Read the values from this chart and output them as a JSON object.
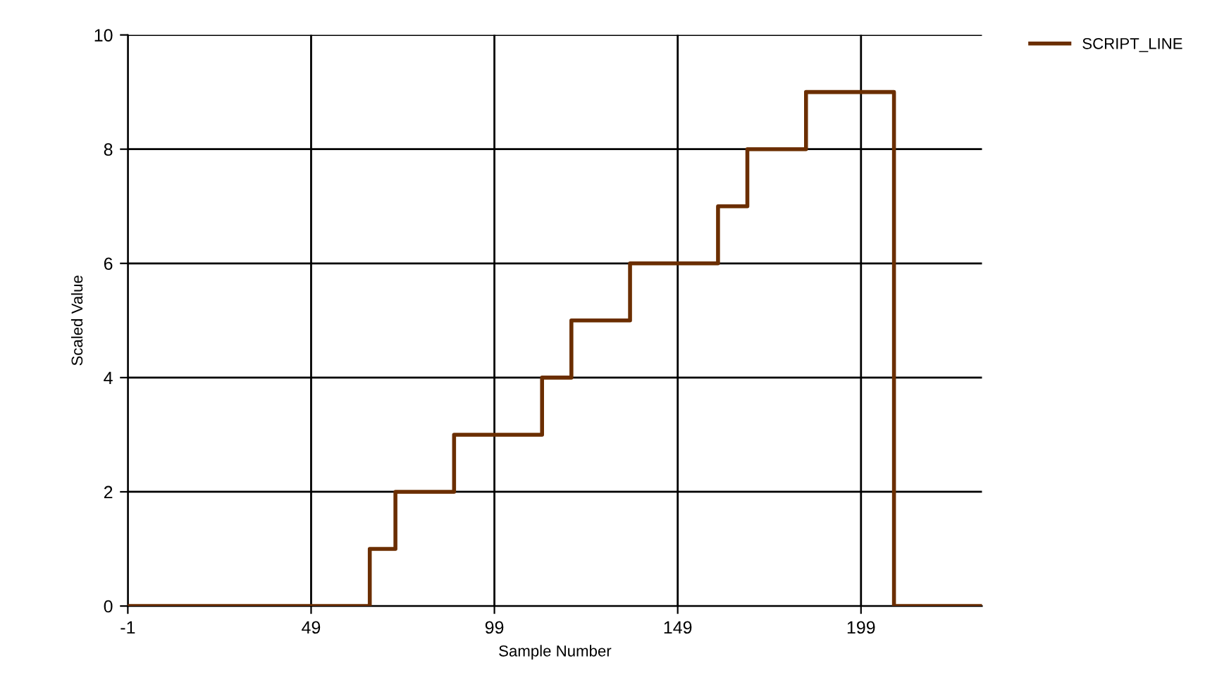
{
  "chart_data": {
    "type": "step",
    "xlabel": "Sample Number",
    "ylabel": "Scaled Value",
    "xlim": [
      -1,
      232
    ],
    "xticks": [
      -1,
      49,
      99,
      149,
      199
    ],
    "ylim": [
      0,
      10
    ],
    "yticks": [
      0,
      2,
      4,
      6,
      8,
      10
    ],
    "grid": true,
    "legend": "top right",
    "series": [
      {
        "name": "SCRIPT_LINE",
        "color": "#6b2e00",
        "x": [
          -1,
          65,
          72,
          88,
          112,
          120,
          136,
          160,
          168,
          184,
          208,
          232
        ],
        "values": [
          0,
          1,
          2,
          3,
          4,
          5,
          6,
          7,
          8,
          9,
          0,
          0
        ]
      }
    ]
  }
}
